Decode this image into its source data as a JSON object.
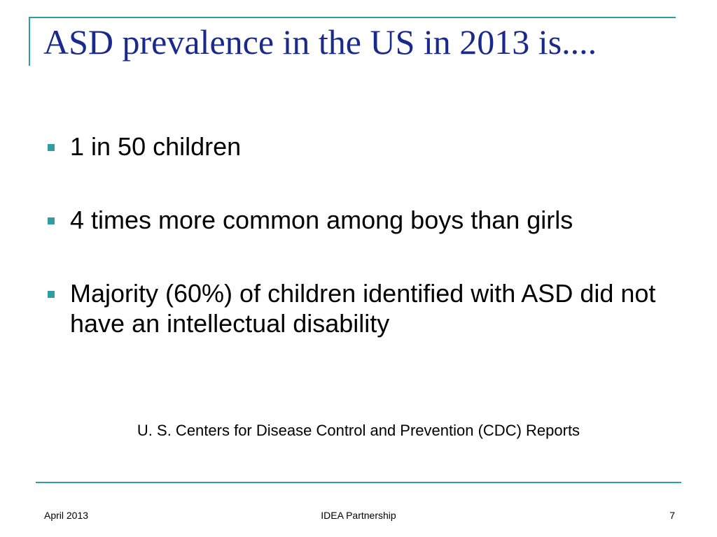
{
  "slide": {
    "title": "ASD prevalence in the US in 2013 is....",
    "bullets": [
      "1 in 50 children",
      "4 times more common among boys than girls",
      "Majority (60%) of children identified with ASD did not have an intellectual disability"
    ],
    "source": "U. S. Centers for Disease Control and Prevention (CDC) Reports"
  },
  "footer": {
    "date": "April 2013",
    "organization": "IDEA Partnership",
    "page_number": "7"
  },
  "colors": {
    "accent": "#2e9ea4",
    "title": "#1a2a8c",
    "text": "#000000",
    "background": "#ffffff"
  },
  "icons": {
    "bullet": "square-bullet-icon"
  }
}
